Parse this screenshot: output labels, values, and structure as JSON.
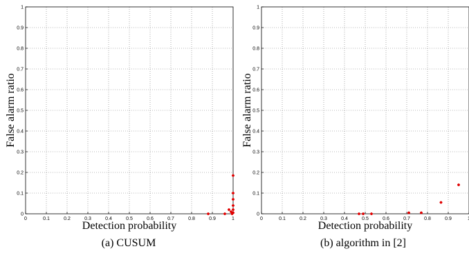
{
  "chart_data": [
    {
      "type": "scatter",
      "caption": "(a) CUSUM",
      "xlabel": "Detection probability",
      "ylabel": "False alarm ratio",
      "xlim": [
        0,
        1
      ],
      "ylim": [
        0,
        1
      ],
      "xticks": [
        "0",
        "0.1",
        "0.2",
        "0.3",
        "0.4",
        "0.5",
        "0.6",
        "0.7",
        "0.8",
        "0.9",
        "1"
      ],
      "yticks": [
        "0",
        "0.1",
        "0.2",
        "0.3",
        "0.4",
        "0.5",
        "0.6",
        "0.7",
        "0.8",
        "0.9",
        "1"
      ],
      "grid": true,
      "marker_color": "#e00000",
      "points": [
        {
          "x": 0.88,
          "y": 0.0
        },
        {
          "x": 0.96,
          "y": 0.0
        },
        {
          "x": 0.98,
          "y": 0.02
        },
        {
          "x": 0.99,
          "y": 0.01
        },
        {
          "x": 0.995,
          "y": 0.0
        },
        {
          "x": 1.0,
          "y": 0.005
        },
        {
          "x": 1.0,
          "y": 0.02
        },
        {
          "x": 1.0,
          "y": 0.04
        },
        {
          "x": 1.0,
          "y": 0.07
        },
        {
          "x": 1.0,
          "y": 0.1
        },
        {
          "x": 1.0,
          "y": 0.185
        }
      ]
    },
    {
      "type": "scatter",
      "caption": "(b) algorithm in [2]",
      "xlabel": "Detection probability",
      "ylabel": "False alarm ratio",
      "xlim": [
        0,
        1
      ],
      "ylim": [
        0,
        1
      ],
      "xticks": [
        "0",
        "0.1",
        "0.2",
        "0.3",
        "0.4",
        "0.5",
        "0.6",
        "0.7",
        "0.8",
        "0.9",
        "1"
      ],
      "yticks": [
        "0",
        "0.1",
        "0.2",
        "0.3",
        "0.4",
        "0.5",
        "0.6",
        "0.7",
        "0.8",
        "0.9",
        "1"
      ],
      "grid": true,
      "marker_color": "#e00000",
      "points": [
        {
          "x": 0.47,
          "y": 0.0
        },
        {
          "x": 0.49,
          "y": 0.0
        },
        {
          "x": 0.53,
          "y": 0.0
        },
        {
          "x": 0.71,
          "y": 0.005
        },
        {
          "x": 0.77,
          "y": 0.005
        },
        {
          "x": 0.865,
          "y": 0.055
        },
        {
          "x": 0.95,
          "y": 0.14
        }
      ]
    }
  ]
}
